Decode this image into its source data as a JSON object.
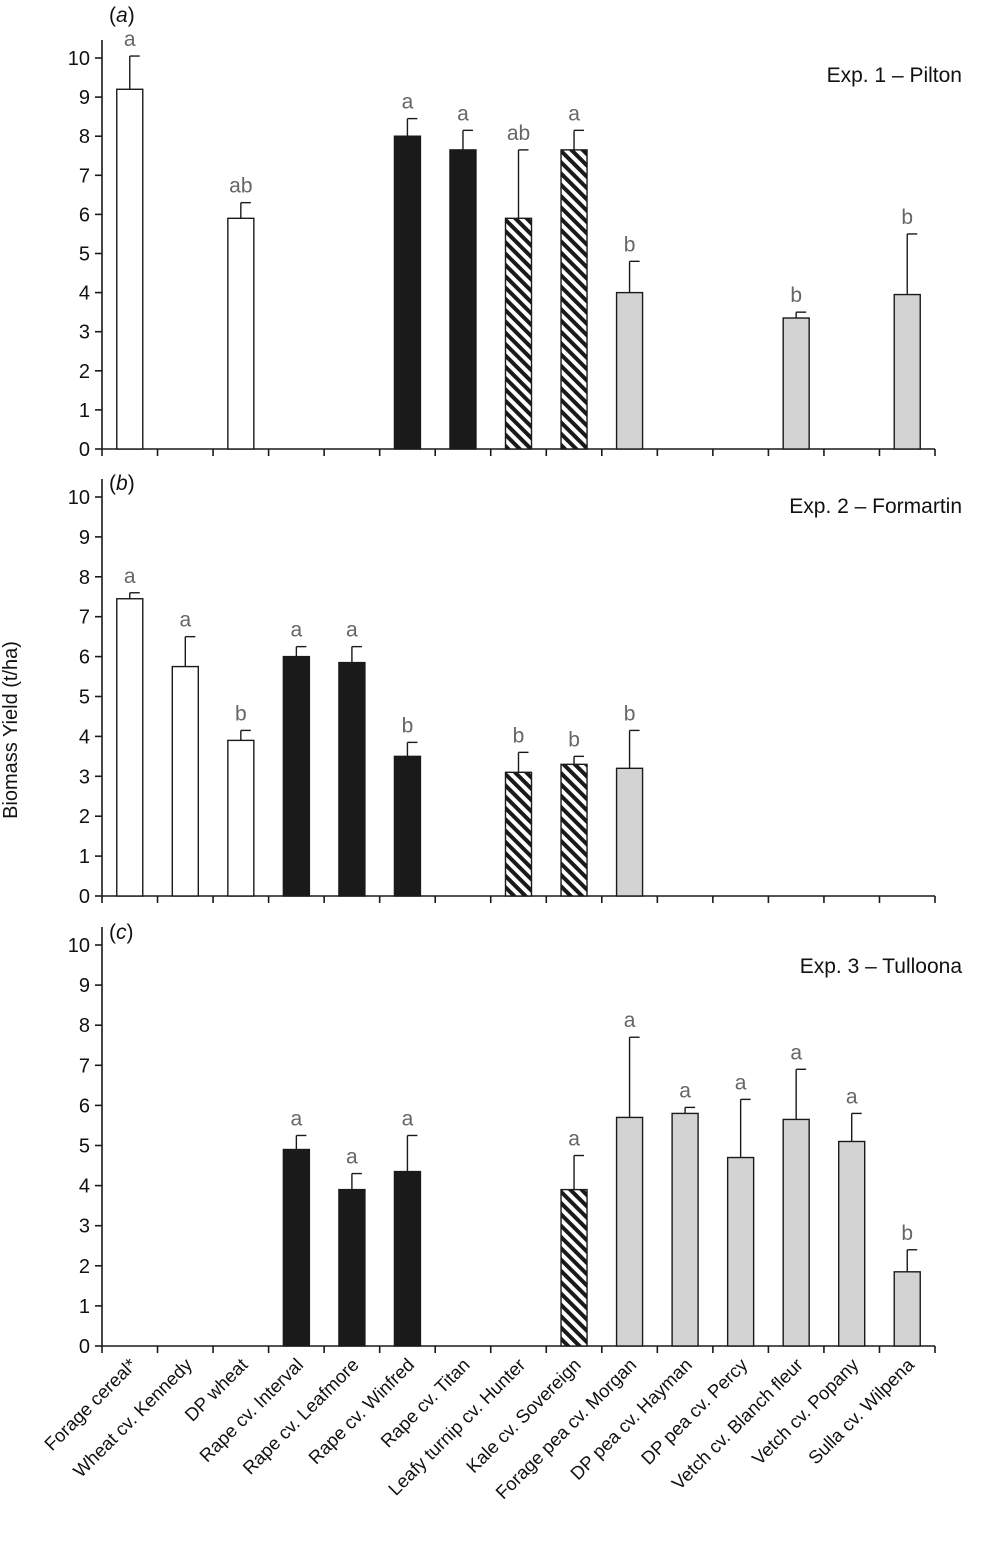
{
  "chart_data": {
    "type": "bar",
    "ylabel": "Biomass Yield (t/ha)",
    "ylim": [
      0,
      10
    ],
    "yticks": [
      0,
      1,
      2,
      3,
      4,
      5,
      6,
      7,
      8,
      9,
      10
    ],
    "categories": [
      "Forage cereal*",
      "Wheat cv. Kennedy",
      "DP wheat",
      "Rape cv. Interval",
      "Rape cv. Leafmore",
      "Rape cv. Winfred",
      "Rape cv. Titan",
      "Leafy turnip cv. Hunter",
      "Kale cv. Sovereign",
      "Forage pea cv. Morgan",
      "DP pea cv. Hayman",
      "DP pea cv. Percy",
      "Vetch cv. Blanch fleur",
      "Vetch cv. Popany",
      "Sulla cv. Wilpena"
    ],
    "panels": [
      {
        "letter": "a",
        "title": "Exp. 1 – Pilton",
        "bars": [
          {
            "category": 0,
            "value": 9.2,
            "error": 0.85,
            "label": "a",
            "fill": "white"
          },
          {
            "category": 2,
            "value": 5.9,
            "error": 0.4,
            "label": "ab",
            "fill": "white"
          },
          {
            "category": 5,
            "value": 8.0,
            "error": 0.45,
            "label": "a",
            "fill": "black"
          },
          {
            "category": 6,
            "value": 7.65,
            "error": 0.5,
            "label": "a",
            "fill": "black"
          },
          {
            "category": 7,
            "value": 5.9,
            "error": 1.75,
            "label": "ab",
            "fill": "hatch"
          },
          {
            "category": 8,
            "value": 7.65,
            "error": 0.5,
            "label": "a",
            "fill": "hatch"
          },
          {
            "category": 9,
            "value": 4.0,
            "error": 0.8,
            "label": "b",
            "fill": "grey"
          },
          {
            "category": 12,
            "value": 3.35,
            "error": 0.15,
            "label": "b",
            "fill": "grey"
          },
          {
            "category": 14,
            "value": 3.95,
            "error": 1.55,
            "label": "b",
            "fill": "grey"
          }
        ]
      },
      {
        "letter": "b",
        "title": "Exp. 2 – Formartin",
        "bars": [
          {
            "category": 0,
            "value": 7.45,
            "error": 0.15,
            "label": "a",
            "fill": "white"
          },
          {
            "category": 1,
            "value": 5.75,
            "error": 0.75,
            "label": "a",
            "fill": "white"
          },
          {
            "category": 2,
            "value": 3.9,
            "error": 0.25,
            "label": "b",
            "fill": "white"
          },
          {
            "category": 3,
            "value": 6.0,
            "error": 0.25,
            "label": "a",
            "fill": "black"
          },
          {
            "category": 4,
            "value": 5.85,
            "error": 0.4,
            "label": "a",
            "fill": "black"
          },
          {
            "category": 5,
            "value": 3.5,
            "error": 0.35,
            "label": "b",
            "fill": "black"
          },
          {
            "category": 7,
            "value": 3.1,
            "error": 0.5,
            "label": "b",
            "fill": "hatch"
          },
          {
            "category": 8,
            "value": 3.3,
            "error": 0.2,
            "label": "b",
            "fill": "hatch"
          },
          {
            "category": 9,
            "value": 3.2,
            "error": 0.95,
            "label": "b",
            "fill": "grey"
          }
        ]
      },
      {
        "letter": "c",
        "title": "Exp. 3 – Tulloona",
        "bars": [
          {
            "category": 3,
            "value": 4.9,
            "error": 0.35,
            "label": "a",
            "fill": "black"
          },
          {
            "category": 4,
            "value": 3.9,
            "error": 0.4,
            "label": "a",
            "fill": "black"
          },
          {
            "category": 5,
            "value": 4.35,
            "error": 0.9,
            "label": "a",
            "fill": "black"
          },
          {
            "category": 8,
            "value": 3.9,
            "error": 0.85,
            "label": "a",
            "fill": "hatch"
          },
          {
            "category": 9,
            "value": 5.7,
            "error": 2.0,
            "label": "a",
            "fill": "grey"
          },
          {
            "category": 10,
            "value": 5.8,
            "error": 0.15,
            "label": "a",
            "fill": "grey"
          },
          {
            "category": 11,
            "value": 4.7,
            "error": 1.45,
            "label": "a",
            "fill": "grey"
          },
          {
            "category": 12,
            "value": 5.65,
            "error": 1.25,
            "label": "a",
            "fill": "grey"
          },
          {
            "category": 13,
            "value": 5.1,
            "error": 0.7,
            "label": "a",
            "fill": "grey"
          },
          {
            "category": 14,
            "value": 1.85,
            "error": 0.55,
            "label": "b",
            "fill": "grey"
          }
        ]
      }
    ],
    "colors": {
      "white": "#ffffff",
      "black": "#1a1a1a",
      "grey": "#d3d3d3",
      "stroke": "#1a1a1a"
    }
  }
}
